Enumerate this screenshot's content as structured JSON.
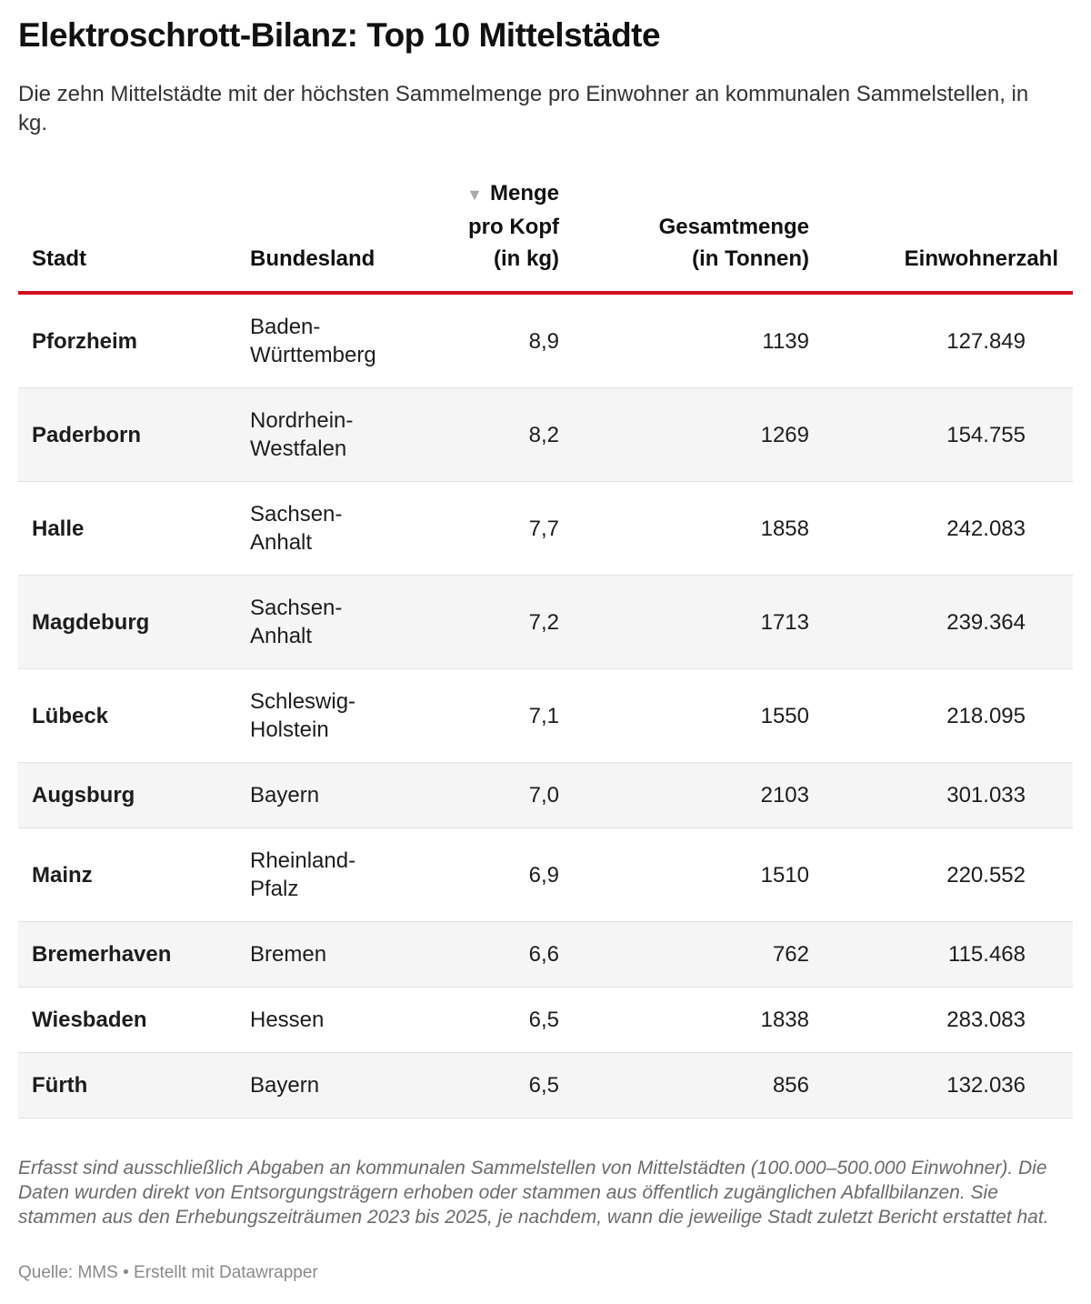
{
  "title": "Elektroschrott-Bilanz: Top 10 Mittelstädte",
  "subtitle": "Die zehn Mittelstädte mit der höchsten Sammelmenge pro Einwohner an kommunalen Sammelstellen, in kg.",
  "colors": {
    "accent_rule": "#d4101a",
    "alt_row": "#f5f5f5"
  },
  "chart_data": {
    "type": "table",
    "sorted_by": "Menge pro Kopf (in kg)",
    "sort_direction": "descending",
    "sort_icon": "triangle-down-icon",
    "columns": [
      "Stadt",
      "Bundesland",
      "Menge pro Kopf (in kg)",
      "Gesamtmenge (in Tonnen)",
      "Einwohnerzahl"
    ],
    "rows": [
      [
        "Pforzheim",
        "Baden-Württemberg",
        "8,9",
        "1139",
        "127.849"
      ],
      [
        "Paderborn",
        "Nordrhein-Westfalen",
        "8,2",
        "1269",
        "154.755"
      ],
      [
        "Halle",
        "Sachsen-Anhalt",
        "7,7",
        "1858",
        "242.083"
      ],
      [
        "Magdeburg",
        "Sachsen-Anhalt",
        "7,2",
        "1713",
        "239.364"
      ],
      [
        "Lübeck",
        "Schleswig-Holstein",
        "7,1",
        "1550",
        "218.095"
      ],
      [
        "Augsburg",
        "Bayern",
        "7,0",
        "2103",
        "301.033"
      ],
      [
        "Mainz",
        "Rheinland-Pfalz",
        "6,9",
        "1510",
        "220.552"
      ],
      [
        "Bremerhaven",
        "Bremen",
        "6,6",
        "762",
        "115.468"
      ],
      [
        "Wiesbaden",
        "Hessen",
        "6,5",
        "1838",
        "283.083"
      ],
      [
        "Fürth",
        "Bayern",
        "6,5",
        "856",
        "132.036"
      ]
    ]
  },
  "notes": "Erfasst sind ausschließlich Abgaben an kommunalen Sammelstellen von Mittelstädten (100.000–500.000 Einwohner). Die Daten wurden direkt von Entsorgungsträgern erhoben oder stammen aus öffentlich zugänglichen Abfallbilanzen. Sie stammen aus den Erhebungszeiträumen 2023 bis 2025, je nachdem, wann die jeweilige Stadt zuletzt Bericht erstattet hat.",
  "source": "Quelle: MMS • Erstellt mit Datawrapper"
}
